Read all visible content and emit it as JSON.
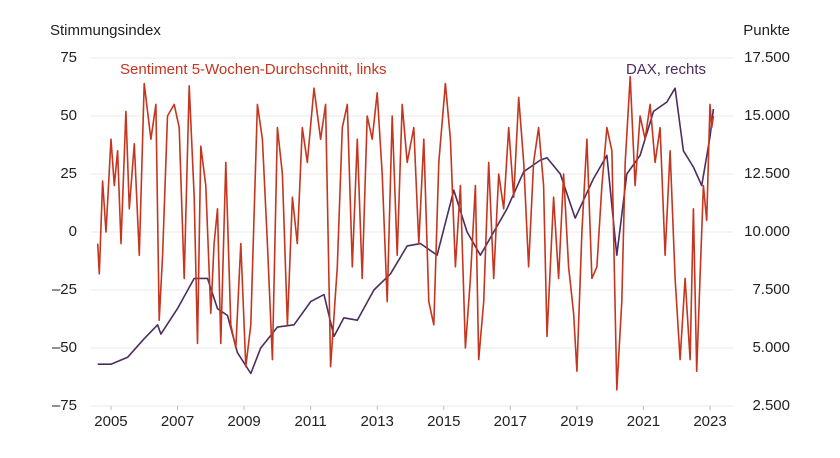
{
  "chart_data": {
    "type": "line",
    "ylabel": "Stimmungsindex",
    "y2label": "Punkte",
    "xlim": [
      2004.4,
      2023.6
    ],
    "xticks": [
      2005,
      2007,
      2009,
      2011,
      2013,
      2015,
      2017,
      2019,
      2021,
      2023
    ],
    "ylim": [
      -75,
      75
    ],
    "yticks": [
      {
        "value": -75,
        "label": "–75"
      },
      {
        "value": -50,
        "label": "–50"
      },
      {
        "value": -25,
        "label": "–25"
      },
      0,
      25,
      50,
      75
    ],
    "y2lim": [
      2500,
      17500
    ],
    "y2ticks": [
      {
        "value": 2500,
        "label": "2.500"
      },
      {
        "value": 5000,
        "label": "5.000"
      },
      {
        "value": 7500,
        "label": "7.500"
      },
      {
        "value": 10000,
        "label": "10.000"
      },
      {
        "value": 12500,
        "label": "12.500"
      },
      {
        "value": 15000,
        "label": "15.000"
      },
      {
        "value": 17500,
        "label": "17.500"
      }
    ],
    "grid": true,
    "series": [
      {
        "name": "Sentiment 5-Wochen-Durchschnitt, links",
        "color": "#c4361f",
        "x": [
          2004.6,
          2004.65,
          2004.75,
          2004.85,
          2005.0,
          2005.1,
          2005.2,
          2005.3,
          2005.45,
          2005.55,
          2005.7,
          2005.85,
          2006.0,
          2006.2,
          2006.35,
          2006.45,
          2006.55,
          2006.7,
          2006.9,
          2007.05,
          2007.2,
          2007.35,
          2007.5,
          2007.6,
          2007.7,
          2007.85,
          2008.0,
          2008.1,
          2008.2,
          2008.3,
          2008.45,
          2008.6,
          2008.75,
          2008.9,
          2009.05,
          2009.2,
          2009.4,
          2009.55,
          2009.7,
          2009.85,
          2010.0,
          2010.15,
          2010.3,
          2010.45,
          2010.6,
          2010.75,
          2010.9,
          2011.1,
          2011.3,
          2011.45,
          2011.6,
          2011.8,
          2011.95,
          2012.1,
          2012.25,
          2012.4,
          2012.55,
          2012.7,
          2012.85,
          2013.0,
          2013.15,
          2013.3,
          2013.45,
          2013.6,
          2013.75,
          2013.9,
          2014.1,
          2014.25,
          2014.4,
          2014.55,
          2014.7,
          2014.85,
          2015.05,
          2015.2,
          2015.35,
          2015.5,
          2015.65,
          2015.8,
          2015.95,
          2016.05,
          2016.2,
          2016.35,
          2016.5,
          2016.65,
          2016.8,
          2016.95,
          2017.1,
          2017.25,
          2017.4,
          2017.55,
          2017.7,
          2017.85,
          2018.0,
          2018.1,
          2018.3,
          2018.45,
          2018.6,
          2018.75,
          2018.9,
          2019.0,
          2019.15,
          2019.3,
          2019.45,
          2019.6,
          2019.75,
          2019.9,
          2020.05,
          2020.2,
          2020.35,
          2020.45,
          2020.6,
          2020.75,
          2020.9,
          2021.05,
          2021.2,
          2021.35,
          2021.5,
          2021.65,
          2021.8,
          2021.95,
          2022.1,
          2022.25,
          2022.4,
          2022.5,
          2022.6,
          2022.7,
          2022.8,
          2022.9,
          2023.0,
          2023.05,
          2023.1
        ],
        "values": [
          -5,
          -18,
          22,
          0,
          40,
          20,
          35,
          -5,
          52,
          10,
          38,
          -10,
          64,
          40,
          55,
          -38,
          -10,
          50,
          55,
          45,
          -20,
          63,
          15,
          -48,
          37,
          20,
          -35,
          -5,
          10,
          -48,
          30,
          -40,
          -50,
          -5,
          -58,
          -40,
          55,
          40,
          -5,
          -55,
          45,
          25,
          -40,
          15,
          -5,
          45,
          30,
          62,
          40,
          55,
          -58,
          -15,
          45,
          55,
          -15,
          40,
          -20,
          50,
          40,
          60,
          25,
          -30,
          50,
          -10,
          55,
          30,
          45,
          -5,
          40,
          -30,
          -40,
          30,
          64,
          40,
          -15,
          20,
          -50,
          -20,
          20,
          -55,
          -30,
          30,
          -20,
          25,
          10,
          45,
          15,
          58,
          30,
          -15,
          30,
          45,
          20,
          -45,
          15,
          -20,
          25,
          -15,
          -35,
          -60,
          0,
          40,
          -20,
          -15,
          20,
          45,
          35,
          -68,
          -30,
          30,
          67,
          20,
          50,
          40,
          55,
          30,
          45,
          -10,
          35,
          -20,
          -55,
          -20,
          -55,
          10,
          -60,
          -20,
          20,
          5,
          55,
          45,
          50
        ]
      },
      {
        "name": "DAX, rechts",
        "color": "#4b2d5f",
        "axis": "y2",
        "x": [
          2004.6,
          2005.0,
          2005.5,
          2006.0,
          2006.4,
          2006.5,
          2007.0,
          2007.5,
          2007.9,
          2008.2,
          2008.5,
          2008.8,
          2009.2,
          2009.5,
          2010.0,
          2010.5,
          2011.0,
          2011.4,
          2011.7,
          2012.0,
          2012.4,
          2012.9,
          2013.4,
          2013.9,
          2014.3,
          2014.8,
          2015.3,
          2015.7,
          2016.1,
          2016.5,
          2016.9,
          2017.4,
          2017.9,
          2018.1,
          2018.5,
          2018.95,
          2019.5,
          2019.9,
          2020.2,
          2020.5,
          2020.9,
          2021.3,
          2021.7,
          2021.95,
          2022.2,
          2022.5,
          2022.75,
          2023.0,
          2023.1
        ],
        "values": [
          4300,
          4300,
          4600,
          5400,
          6000,
          5600,
          6700,
          8000,
          8000,
          6700,
          6400,
          4800,
          3900,
          5000,
          5900,
          6000,
          7000,
          7300,
          5500,
          6300,
          6200,
          7500,
          8200,
          9400,
          9500,
          9000,
          11800,
          10000,
          9000,
          10000,
          11000,
          12600,
          13100,
          13200,
          12500,
          10600,
          12300,
          13300,
          9000,
          12500,
          13300,
          15200,
          15600,
          16200,
          13500,
          12800,
          12000,
          14100,
          15300
        ]
      }
    ]
  }
}
